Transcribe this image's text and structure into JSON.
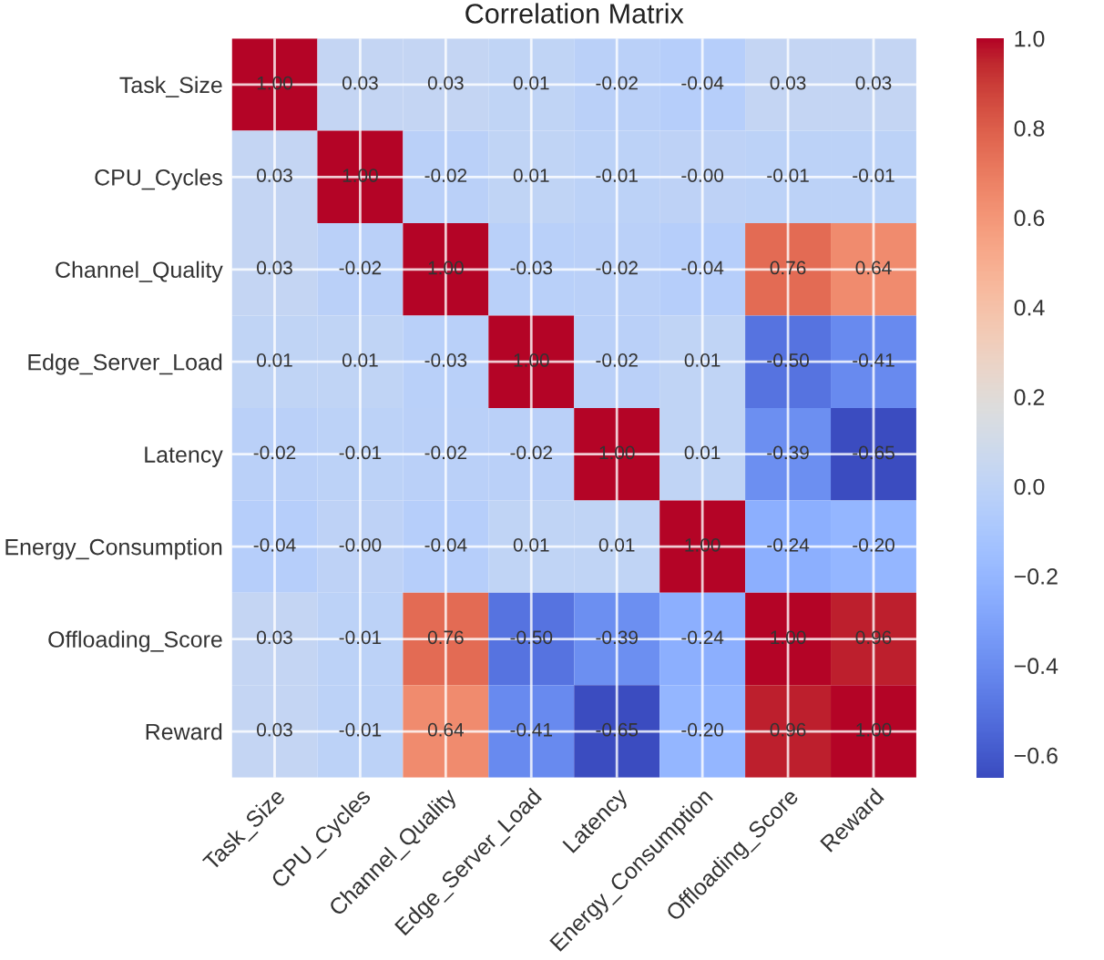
{
  "chart_data": {
    "type": "heatmap",
    "title": "Correlation Matrix",
    "categories": [
      "Task_Size",
      "CPU_Cycles",
      "Channel_Quality",
      "Edge_Server_Load",
      "Latency",
      "Energy_Consumption",
      "Offloading_Score",
      "Reward"
    ],
    "y_categories": [
      "Task_Size",
      "CPU_Cycles",
      "Channel_Quality",
      "Edge_Server_Load",
      "Latency",
      "Energy_Consumption",
      "Offloading_Score",
      "Reward"
    ],
    "cells": [
      [
        1.0,
        0.03,
        0.03,
        0.01,
        -0.02,
        -0.04,
        0.03,
        0.03
      ],
      [
        0.03,
        1.0,
        -0.02,
        0.01,
        -0.01,
        0.0,
        -0.01,
        -0.01
      ],
      [
        0.03,
        -0.02,
        1.0,
        -0.03,
        -0.02,
        -0.04,
        0.76,
        0.64
      ],
      [
        0.01,
        0.01,
        -0.03,
        1.0,
        -0.02,
        0.01,
        -0.5,
        -0.41
      ],
      [
        -0.02,
        -0.01,
        -0.02,
        -0.02,
        1.0,
        0.01,
        -0.39,
        -0.65
      ],
      [
        -0.04,
        0.0,
        -0.04,
        0.01,
        0.01,
        1.0,
        -0.24,
        -0.2
      ],
      [
        0.03,
        -0.01,
        0.76,
        -0.5,
        -0.39,
        -0.24,
        1.0,
        0.96
      ],
      [
        0.03,
        -0.01,
        0.64,
        -0.41,
        -0.65,
        -0.2,
        0.96,
        1.0
      ]
    ],
    "cell_labels": [
      [
        "1.00",
        "0.03",
        "0.03",
        "0.01",
        "-0.02",
        "-0.04",
        "0.03",
        "0.03"
      ],
      [
        "0.03",
        "1.00",
        "-0.02",
        "0.01",
        "-0.01",
        "-0.00",
        "-0.01",
        "-0.01"
      ],
      [
        "0.03",
        "-0.02",
        "1.00",
        "-0.03",
        "-0.02",
        "-0.04",
        "0.76",
        "0.64"
      ],
      [
        "0.01",
        "0.01",
        "-0.03",
        "1.00",
        "-0.02",
        "0.01",
        "-0.50",
        "-0.41"
      ],
      [
        "-0.02",
        "-0.01",
        "-0.02",
        "-0.02",
        "1.00",
        "0.01",
        "-0.39",
        "-0.65"
      ],
      [
        "-0.04",
        "-0.00",
        "-0.04",
        "0.01",
        "0.01",
        "1.00",
        "-0.24",
        "-0.20"
      ],
      [
        "0.03",
        "-0.01",
        "0.76",
        "-0.50",
        "-0.39",
        "-0.24",
        "1.00",
        "0.96"
      ],
      [
        "0.03",
        "-0.01",
        "0.64",
        "-0.41",
        "-0.65",
        "-0.20",
        "0.96",
        "1.00"
      ]
    ],
    "clim": [
      -0.65,
      1.0
    ],
    "cticks": [
      {
        "value": -0.6,
        "label": "−0.6"
      },
      {
        "value": -0.4,
        "label": "−0.4"
      },
      {
        "value": -0.2,
        "label": "−0.2"
      },
      {
        "value": 0.0,
        "label": "0.0"
      },
      {
        "value": 0.2,
        "label": "0.2"
      },
      {
        "value": 0.4,
        "label": "0.4"
      },
      {
        "value": 0.6,
        "label": "0.6"
      },
      {
        "value": 0.8,
        "label": "0.8"
      },
      {
        "value": 1.0,
        "label": "1.0"
      }
    ],
    "grid": true
  }
}
